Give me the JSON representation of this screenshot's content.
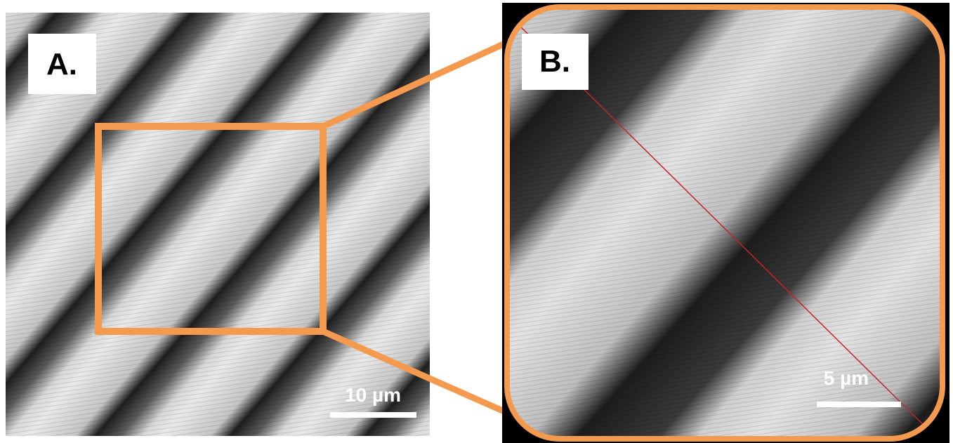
{
  "panels": [
    {
      "label": "A.",
      "scale_bar": "10 µm"
    },
    {
      "label": "B.",
      "scale_bar": "5 µm"
    }
  ]
}
